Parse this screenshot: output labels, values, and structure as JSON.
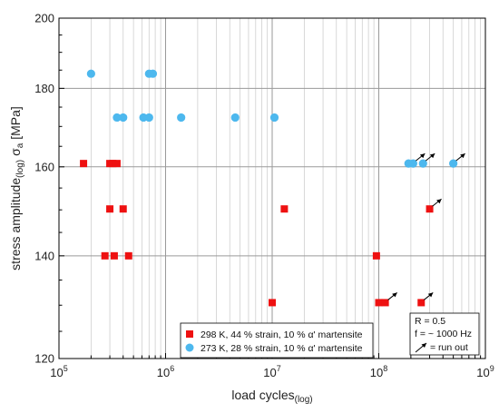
{
  "chart_data": {
    "type": "scatter",
    "xlabel": "load cycles",
    "xlabel_sub": "(log)",
    "ylabel": "stress amplitude",
    "ylabel_sub": "(log)",
    "ylabel_symbol": "σ",
    "ylabel_symbol_sub": "a",
    "ylabel_unit": " [MPa]",
    "x_scale": "log",
    "y_scale": "log",
    "xlim": [
      100000,
      1000000000
    ],
    "ylim": [
      120,
      200
    ],
    "x_ticks": [
      {
        "value": 100000,
        "base": "10",
        "exp": "5"
      },
      {
        "value": 1000000,
        "base": "10",
        "exp": "6"
      },
      {
        "value": 10000000,
        "base": "10",
        "exp": "7"
      },
      {
        "value": 100000000,
        "base": "10",
        "exp": "8"
      },
      {
        "value": 1000000000,
        "base": "10",
        "exp": "9"
      }
    ],
    "y_ticks": [
      {
        "value": 120,
        "label": "120"
      },
      {
        "value": 140,
        "label": "140"
      },
      {
        "value": 160,
        "label": "160"
      },
      {
        "value": 180,
        "label": "180"
      },
      {
        "value": 200,
        "label": "200"
      }
    ],
    "grid": true,
    "legend_position": "bottom-center",
    "series": [
      {
        "name": "298 K, 44 % strain, 10 % α' martensite",
        "marker": "square",
        "color": "#ee1111",
        "points": [
          {
            "x": 170000,
            "y": 160.8
          },
          {
            "x": 300000,
            "y": 160.8
          },
          {
            "x": 320000,
            "y": 160.8
          },
          {
            "x": 350000,
            "y": 160.8
          },
          {
            "x": 300000,
            "y": 150.2
          },
          {
            "x": 400000,
            "y": 150.2
          },
          {
            "x": 13000000,
            "y": 150.2
          },
          {
            "x": 300000000,
            "y": 150.2,
            "runout": true
          },
          {
            "x": 270000,
            "y": 140.0
          },
          {
            "x": 330000,
            "y": 140.0
          },
          {
            "x": 450000,
            "y": 140.0
          },
          {
            "x": 95000000,
            "y": 140.0
          },
          {
            "x": 10000000,
            "y": 130.5
          },
          {
            "x": 100000000,
            "y": 130.5
          },
          {
            "x": 115000000,
            "y": 130.5,
            "runout": true
          },
          {
            "x": 250000000,
            "y": 130.5,
            "runout": true
          }
        ]
      },
      {
        "name": "273 K, 28 % strain, 10 % α' martensite",
        "marker": "circle",
        "color": "#4db8ee",
        "points": [
          {
            "x": 200000,
            "y": 184.0
          },
          {
            "x": 700000,
            "y": 184.0
          },
          {
            "x": 760000,
            "y": 184.0
          },
          {
            "x": 350000,
            "y": 172.3
          },
          {
            "x": 400000,
            "y": 172.3
          },
          {
            "x": 620000,
            "y": 172.3
          },
          {
            "x": 700000,
            "y": 172.3
          },
          {
            "x": 1400000,
            "y": 172.3
          },
          {
            "x": 4500000,
            "y": 172.3
          },
          {
            "x": 10500000,
            "y": 172.3
          },
          {
            "x": 190000000,
            "y": 160.8
          },
          {
            "x": 210000000,
            "y": 160.8,
            "runout": true
          },
          {
            "x": 260000000,
            "y": 160.8,
            "runout": true
          },
          {
            "x": 500000000,
            "y": 160.8,
            "runout": true
          }
        ]
      }
    ],
    "annotations": [
      "R = 0.5",
      "f = ~ 1000 Hz",
      "= run out"
    ]
  }
}
